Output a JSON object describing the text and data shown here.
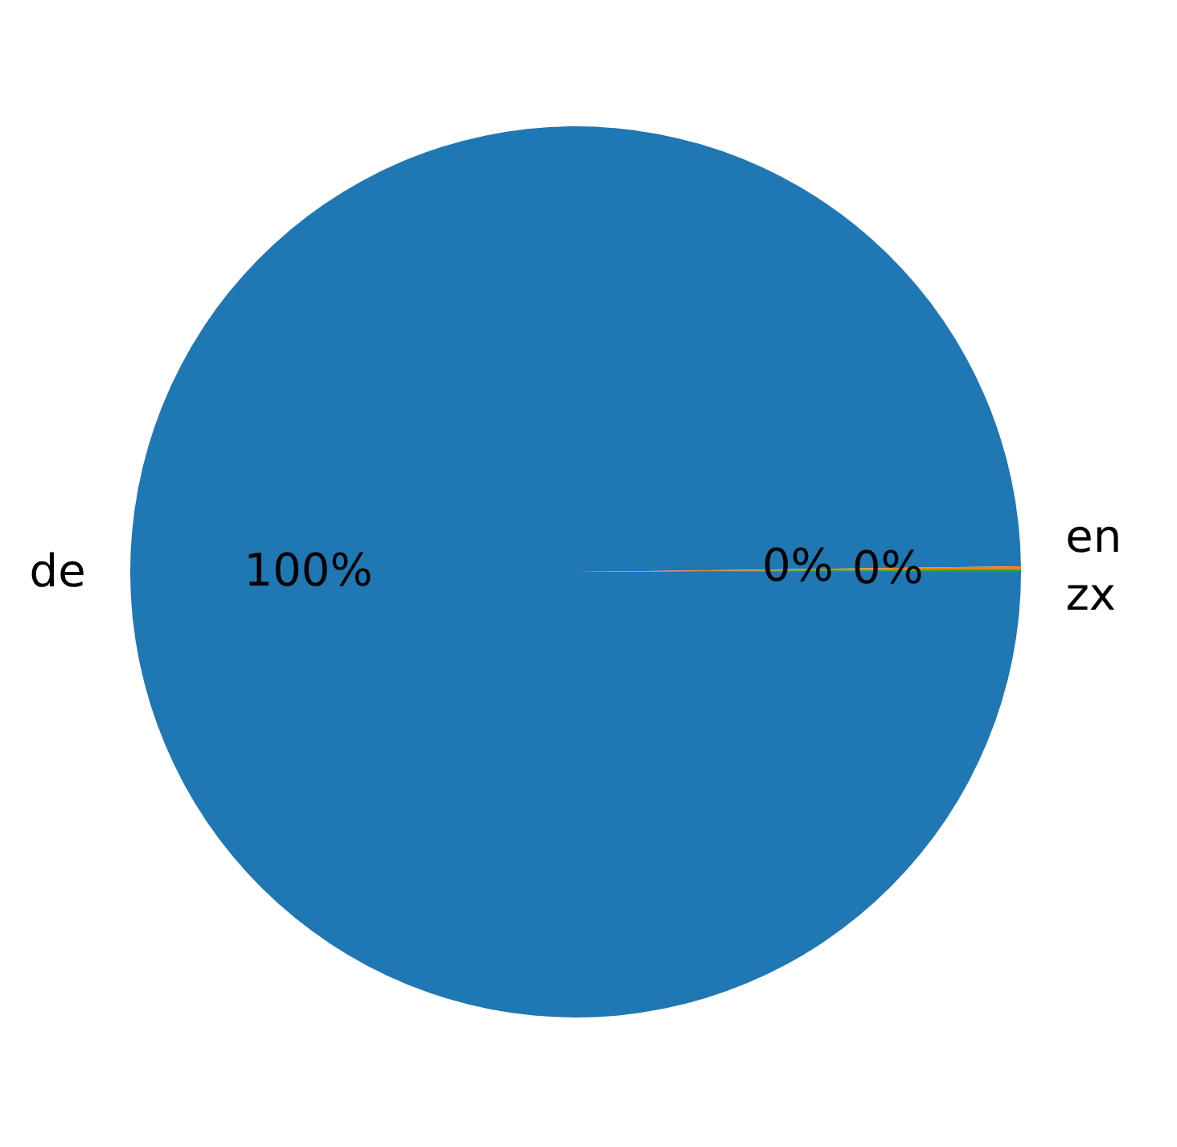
{
  "chart_data": {
    "type": "pie",
    "categories": [
      "de",
      "en",
      "zx"
    ],
    "values": [
      99.8,
      0.1,
      0.1
    ],
    "colors": [
      "#1f77b4",
      "#ff7f0e",
      "#2ca02c"
    ],
    "value_labels": [
      "100%",
      "0%",
      "0%"
    ],
    "legend": false
  }
}
